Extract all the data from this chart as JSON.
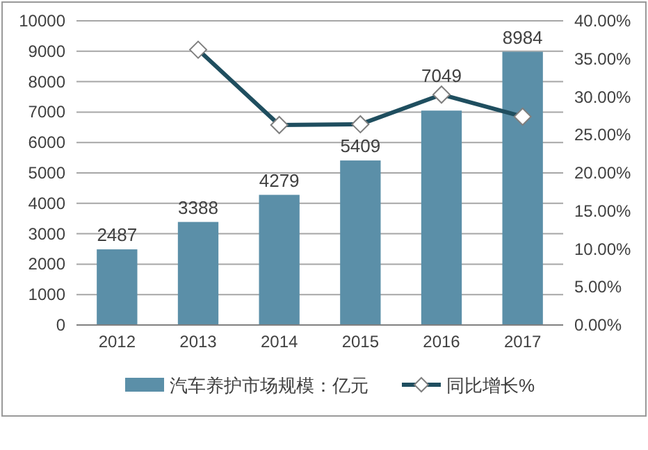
{
  "chart_data": {
    "type": "bar",
    "categories": [
      "2012",
      "2013",
      "2014",
      "2015",
      "2016",
      "2017"
    ],
    "series": [
      {
        "name": "汽车养护市场规模：亿元",
        "color": "#5b8fa8",
        "values": [
          2487,
          3388,
          4279,
          5409,
          7049,
          8984
        ],
        "value_labels": [
          "2487",
          "3388",
          "4279",
          "5409",
          "7049",
          "8984"
        ]
      },
      {
        "name": "同比增长%",
        "type": "line",
        "axis": "y2",
        "color": "#1f4e5f",
        "marker": "diamond",
        "values": [
          null,
          36.2,
          26.3,
          26.4,
          30.3,
          27.4
        ]
      }
    ],
    "ylim": [
      0,
      10000
    ],
    "yticks": [
      0,
      1000,
      2000,
      3000,
      4000,
      5000,
      6000,
      7000,
      8000,
      9000,
      10000
    ],
    "y2lim": [
      0,
      40
    ],
    "y2ticks": [
      {
        "value": 0,
        "label": "0.00%"
      },
      {
        "value": 5,
        "label": "5.00%"
      },
      {
        "value": 10,
        "label": "10.00%"
      },
      {
        "value": 15,
        "label": "15.00%"
      },
      {
        "value": 20,
        "label": "20.00%"
      },
      {
        "value": 25,
        "label": "25.00%"
      },
      {
        "value": 30,
        "label": "30.00%"
      },
      {
        "value": 35,
        "label": "35.00%"
      },
      {
        "value": 40,
        "label": "40.00%"
      }
    ],
    "grid": "y",
    "legend": "bottom"
  }
}
